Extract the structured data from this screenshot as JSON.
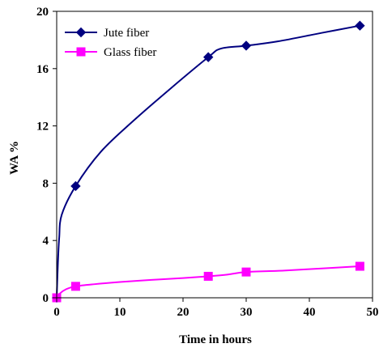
{
  "chart_data": {
    "type": "line",
    "xlabel": "Time in hours",
    "ylabel": "WA %",
    "xlim": [
      0,
      50
    ],
    "ylim": [
      0,
      20
    ],
    "xticks": [
      0,
      10,
      20,
      30,
      40,
      50
    ],
    "yticks": [
      0,
      4,
      8,
      12,
      16,
      20
    ],
    "grid": false,
    "legend_position": "top-left",
    "series": [
      {
        "name": "Jute fiber",
        "color": "#000080",
        "marker": "diamond",
        "markers": [
          [
            0,
            0
          ],
          [
            3,
            7.8
          ],
          [
            24,
            16.8
          ],
          [
            30,
            17.6
          ],
          [
            48,
            19
          ]
        ],
        "curve": [
          [
            0,
            0
          ],
          [
            0.2,
            2.5
          ],
          [
            0.4,
            4.2
          ],
          [
            0.8,
            5.8
          ],
          [
            3,
            7.8
          ],
          [
            7,
            10.2
          ],
          [
            12,
            12.3
          ],
          [
            18,
            14.6
          ],
          [
            24,
            16.8
          ],
          [
            26,
            17.4
          ],
          [
            30,
            17.6
          ],
          [
            35,
            17.9
          ],
          [
            42,
            18.5
          ],
          [
            48,
            19
          ]
        ]
      },
      {
        "name": "Glass fiber",
        "color": "#ff00ff",
        "marker": "square",
        "markers": [
          [
            0,
            0
          ],
          [
            3,
            0.8
          ],
          [
            24,
            1.5
          ],
          [
            30,
            1.8
          ],
          [
            48,
            2.2
          ]
        ],
        "curve": [
          [
            0,
            0
          ],
          [
            0.5,
            0.3
          ],
          [
            1.5,
            0.6
          ],
          [
            3,
            0.8
          ],
          [
            6,
            0.95
          ],
          [
            10,
            1.1
          ],
          [
            15,
            1.25
          ],
          [
            20,
            1.38
          ],
          [
            24,
            1.5
          ],
          [
            27,
            1.62
          ],
          [
            30,
            1.8
          ],
          [
            36,
            1.9
          ],
          [
            42,
            2.05
          ],
          [
            48,
            2.2
          ]
        ]
      }
    ]
  }
}
